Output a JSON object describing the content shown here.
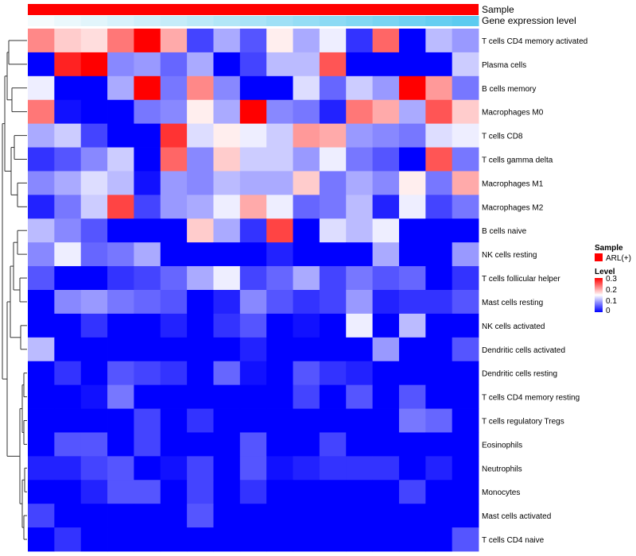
{
  "chart_data": {
    "type": "heatmap",
    "annotation_tracks": [
      {
        "name": "Sample",
        "color": "#ff0000"
      },
      {
        "name": "Gene expression level",
        "gradient": [
          "#f5fbfd",
          "#5ccbf0"
        ]
      }
    ],
    "rows": [
      "T cells CD4 memory activated",
      "Plasma cells",
      "B cells memory",
      "Macrophages M0",
      "T cells CD8",
      "T cells gamma delta",
      "Macrophages M1",
      "Macrophages M2",
      "B cells naive",
      "NK cells resting",
      "T cells follicular helper",
      "Mast cells resting",
      "NK cells activated",
      "Dendritic cells activated",
      "Dendritic cells resting",
      "T cells CD4 memory resting",
      "T cells regulatory  Tregs",
      "Eosinophils",
      "Neutrophils",
      "Monocytes",
      "Mast cells activated",
      "T cells CD4 naive"
    ],
    "values": [
      [
        0.22,
        0.18,
        0.17,
        0.23,
        0.3,
        0.2,
        0.04,
        0.1,
        0.05,
        0.16,
        0.1,
        0.14,
        0.03,
        0.24,
        0.0,
        0.11,
        0.09
      ],
      [
        0.0,
        0.28,
        0.3,
        0.08,
        0.09,
        0.06,
        0.1,
        0.0,
        0.04,
        0.11,
        0.11,
        0.25,
        0.0,
        0.0,
        0.0,
        0.0,
        0.12
      ],
      [
        0.14,
        0.0,
        0.0,
        0.1,
        0.3,
        0.07,
        0.22,
        0.08,
        0.0,
        0.0,
        0.13,
        0.06,
        0.12,
        0.09,
        0.3,
        0.21,
        0.07
      ],
      [
        0.23,
        0.01,
        0.0,
        0.0,
        0.07,
        0.08,
        0.16,
        0.1,
        0.3,
        0.08,
        0.07,
        0.02,
        0.23,
        0.2,
        0.1,
        0.25,
        0.18
      ],
      [
        0.1,
        0.12,
        0.04,
        0.0,
        0.0,
        0.27,
        0.13,
        0.16,
        0.14,
        0.12,
        0.21,
        0.2,
        0.09,
        0.08,
        0.07,
        0.13,
        0.14
      ],
      [
        0.03,
        0.05,
        0.08,
        0.12,
        0.0,
        0.24,
        0.08,
        0.18,
        0.12,
        0.12,
        0.09,
        0.14,
        0.07,
        0.05,
        0.0,
        0.25,
        0.07
      ],
      [
        0.08,
        0.1,
        0.13,
        0.11,
        0.01,
        0.09,
        0.08,
        0.11,
        0.1,
        0.1,
        0.18,
        0.07,
        0.1,
        0.08,
        0.16,
        0.07,
        0.2
      ],
      [
        0.02,
        0.07,
        0.12,
        0.26,
        0.04,
        0.09,
        0.1,
        0.14,
        0.2,
        0.14,
        0.06,
        0.07,
        0.11,
        0.02,
        0.14,
        0.04,
        0.07
      ],
      [
        0.11,
        0.08,
        0.05,
        0.0,
        0.0,
        0.0,
        0.18,
        0.1,
        0.03,
        0.26,
        0.0,
        0.13,
        0.11,
        0.14,
        0.0,
        0.0,
        0.0
      ],
      [
        0.08,
        0.14,
        0.06,
        0.07,
        0.1,
        0.0,
        0.0,
        0.0,
        0.0,
        0.02,
        0.0,
        0.0,
        0.0,
        0.1,
        0.0,
        0.0,
        0.09
      ],
      [
        0.05,
        0.0,
        0.0,
        0.03,
        0.04,
        0.06,
        0.1,
        0.14,
        0.04,
        0.06,
        0.1,
        0.04,
        0.07,
        0.05,
        0.06,
        0.0,
        0.03
      ],
      [
        0.0,
        0.08,
        0.09,
        0.07,
        0.06,
        0.05,
        0.0,
        0.02,
        0.08,
        0.05,
        0.03,
        0.04,
        0.09,
        0.02,
        0.03,
        0.03,
        0.05
      ],
      [
        0.0,
        0.0,
        0.03,
        0.0,
        0.0,
        0.02,
        0.0,
        0.03,
        0.05,
        0.0,
        0.01,
        0.0,
        0.14,
        0.0,
        0.11,
        0.0,
        0.0
      ],
      [
        0.11,
        0.0,
        0.0,
        0.0,
        0.0,
        0.0,
        0.0,
        0.0,
        0.02,
        0.0,
        0.0,
        0.0,
        0.0,
        0.09,
        0.0,
        0.0,
        0.05
      ],
      [
        0.0,
        0.03,
        0.0,
        0.05,
        0.04,
        0.03,
        0.0,
        0.06,
        0.01,
        0.0,
        0.05,
        0.03,
        0.02,
        0.0,
        0.0,
        0.0,
        0.0
      ],
      [
        0.0,
        0.0,
        0.01,
        0.07,
        0.0,
        0.0,
        0.0,
        0.0,
        0.0,
        0.0,
        0.04,
        0.0,
        0.05,
        0.0,
        0.05,
        0.0,
        0.0
      ],
      [
        0.0,
        0.0,
        0.0,
        0.0,
        0.04,
        0.0,
        0.03,
        0.0,
        0.0,
        0.0,
        0.0,
        0.0,
        0.0,
        0.0,
        0.07,
        0.06,
        0.0
      ],
      [
        0.0,
        0.05,
        0.05,
        0.0,
        0.04,
        0.0,
        0.0,
        0.0,
        0.05,
        0.0,
        0.0,
        0.04,
        0.0,
        0.0,
        0.0,
        0.0,
        0.0
      ],
      [
        0.02,
        0.02,
        0.04,
        0.05,
        0.0,
        0.01,
        0.04,
        0.0,
        0.05,
        0.01,
        0.02,
        0.03,
        0.03,
        0.03,
        0.0,
        0.02,
        0.0
      ],
      [
        0.0,
        0.0,
        0.02,
        0.05,
        0.05,
        0.0,
        0.04,
        0.0,
        0.03,
        0.0,
        0.0,
        0.0,
        0.0,
        0.0,
        0.04,
        0.0,
        0.0
      ],
      [
        0.04,
        0.0,
        0.0,
        0.0,
        0.0,
        0.0,
        0.05,
        0.0,
        0.0,
        0.0,
        0.0,
        0.0,
        0.0,
        0.0,
        0.0,
        0.0,
        0.0
      ],
      [
        0.0,
        0.03,
        0.0,
        0.0,
        0.0,
        0.0,
        0.0,
        0.0,
        0.0,
        0.0,
        0.0,
        0.0,
        0.0,
        0.0,
        0.0,
        0.0,
        0.05
      ]
    ],
    "color_scale": {
      "min": 0,
      "max": 0.3,
      "colors": [
        "#0000ff",
        "#ffffff",
        "#ff0000"
      ]
    }
  },
  "legend": {
    "sample": {
      "title": "Sample",
      "entry_label": "ARL(+)",
      "entry_color": "#ff0000"
    },
    "level": {
      "title": "Level",
      "ticks": [
        "0.3",
        "0.2",
        "0.1",
        "0"
      ]
    }
  }
}
